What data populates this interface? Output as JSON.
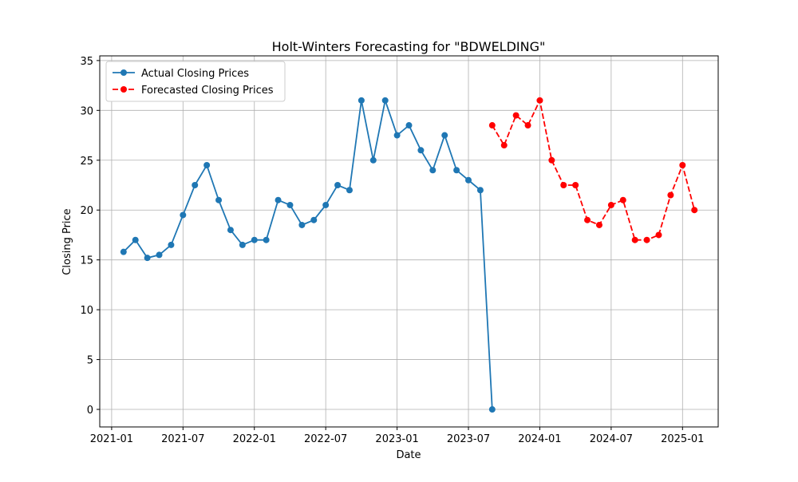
{
  "chart_data": {
    "type": "line",
    "title": "Holt-Winters Forecasting for \"BDWELDING\"",
    "x_label": "Date",
    "y_label": "Closing Price",
    "xlim": [
      "2020-12",
      "2025-04"
    ],
    "xticks": [
      "2021-01",
      "2021-07",
      "2022-01",
      "2022-07",
      "2023-01",
      "2023-07",
      "2024-01",
      "2024-07",
      "2025-01"
    ],
    "ylim": [
      -1.76,
      35.47
    ],
    "yticks": [
      0,
      5,
      10,
      15,
      20,
      25,
      30,
      35
    ],
    "grid": true,
    "legend": "upper left",
    "series": [
      {
        "name": "Actual Closing Prices",
        "color": "#1f77b4",
        "linestyle": "solid",
        "x": [
          "2021-02",
          "2021-03",
          "2021-04",
          "2021-05",
          "2021-06",
          "2021-07",
          "2021-08",
          "2021-09",
          "2021-10",
          "2021-11",
          "2021-12",
          "2022-01",
          "2022-02",
          "2022-03",
          "2022-04",
          "2022-05",
          "2022-06",
          "2022-07",
          "2022-08",
          "2022-09",
          "2022-10",
          "2022-11",
          "2022-12",
          "2023-01",
          "2023-02",
          "2023-03",
          "2023-04",
          "2023-05",
          "2023-06",
          "2023-07",
          "2023-08",
          "2023-09"
        ],
        "values": [
          15.8,
          17.0,
          15.2,
          15.5,
          16.5,
          19.5,
          22.5,
          24.5,
          21.0,
          18.0,
          16.5,
          17.0,
          17.0,
          21.0,
          20.5,
          18.5,
          19.0,
          20.5,
          22.5,
          22.0,
          31.0,
          25.0,
          31.0,
          27.5,
          28.5,
          26.0,
          24.0,
          27.5,
          24.0,
          23.0,
          22.0,
          0
        ]
      },
      {
        "name": "Forecasted Closing Prices",
        "color": "#ff0000",
        "linestyle": "dashed",
        "x": [
          "2023-09",
          "2023-10",
          "2023-11",
          "2023-12",
          "2024-01",
          "2024-02",
          "2024-03",
          "2024-04",
          "2024-05",
          "2024-06",
          "2024-07",
          "2024-08",
          "2024-09",
          "2024-10",
          "2024-11",
          "2024-12",
          "2025-01",
          "2025-02"
        ],
        "values": [
          28.5,
          26.5,
          29.5,
          28.5,
          31.0,
          25.0,
          22.5,
          22.5,
          19.0,
          18.5,
          20.5,
          21.0,
          17.0,
          17.0,
          17.5,
          21.5,
          24.5,
          20.0
        ]
      }
    ]
  }
}
